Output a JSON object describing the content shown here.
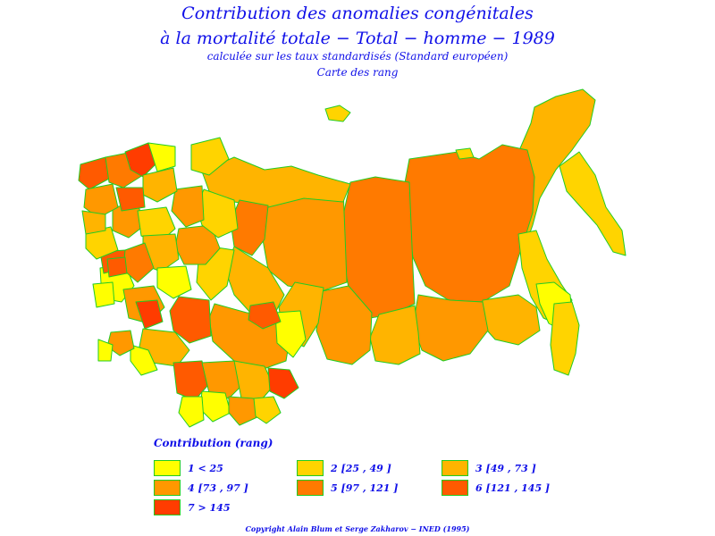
{
  "title": {
    "line1": "Contribution des anomalies congénitales",
    "line2": "à la mortalité totale − Total − homme − 1989",
    "line3": "calculée sur les taux standardisés (Standard européen)",
    "line4": "Carte des rang"
  },
  "legend": {
    "title": "Contribution (rang)",
    "items": [
      {
        "label": "1  <  25",
        "color": "#ffff00"
      },
      {
        "label": "2 [25 , 49 ]",
        "color": "#ffd400"
      },
      {
        "label": "3 [49 , 73 ]",
        "color": "#ffb400"
      },
      {
        "label": "4 [73 , 97 ]",
        "color": "#ff9800"
      },
      {
        "label": "5 [97 , 121 ]",
        "color": "#ff7a00"
      },
      {
        "label": "6 [121 , 145 ]",
        "color": "#ff5a00"
      },
      {
        "label": "7  >  145",
        "color": "#ff3c00"
      }
    ]
  },
  "colors": {
    "border": "#22cc22",
    "text": "#1010e8"
  },
  "copyright": "Copyright Alain Blum et Serge Zakharov − INED (1995)"
}
